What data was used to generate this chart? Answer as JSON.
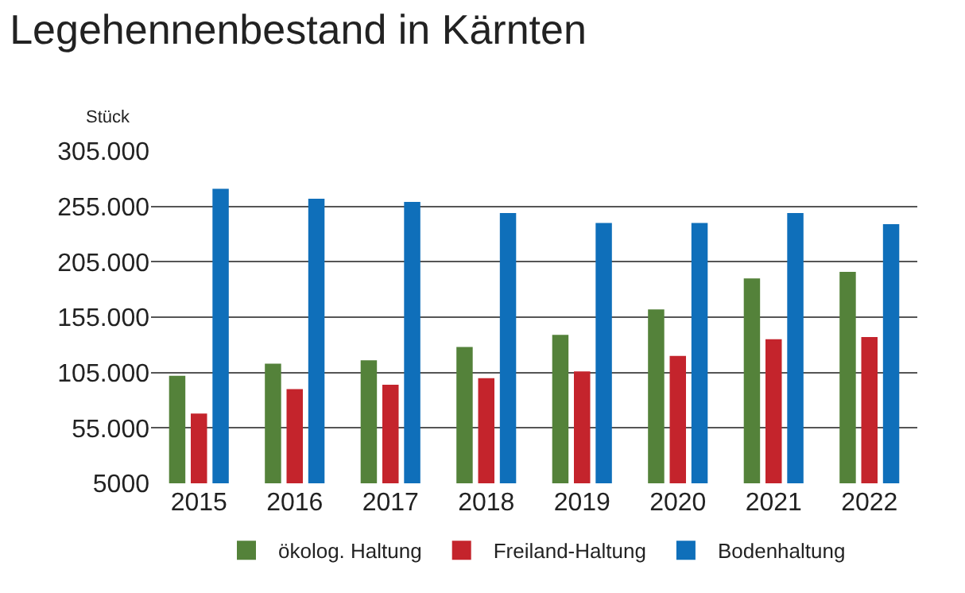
{
  "chart_data": {
    "type": "bar",
    "title": "Legehennenbestand in Kärnten",
    "annotations": [
      "Stück"
    ],
    "categories": [
      "2015",
      "2016",
      "2017",
      "2018",
      "2019",
      "2020",
      "2021",
      "2022"
    ],
    "series": [
      {
        "name": "ökolog. Haltung",
        "color": "#54823a",
        "values": [
          102000,
          113000,
          116000,
          128000,
          139000,
          162000,
          190000,
          196000
        ]
      },
      {
        "name": "Freiland-Haltung",
        "color": "#c4242c",
        "values": [
          68000,
          90000,
          94000,
          100000,
          106000,
          120000,
          135000,
          137000
        ]
      },
      {
        "name": "Bodenhaltung",
        "color": "#0f6fba",
        "values": [
          271000,
          262000,
          259000,
          249000,
          240000,
          240000,
          249000,
          239000
        ]
      }
    ],
    "ylim": [
      5000,
      305000
    ],
    "yticks": [
      {
        "value": 5000,
        "label": "5000"
      },
      {
        "value": 55000,
        "label": "55.000"
      },
      {
        "value": 105000,
        "label": "105.000"
      },
      {
        "value": 155000,
        "label": "155.000"
      },
      {
        "value": 205000,
        "label": "205.000"
      },
      {
        "value": 255000,
        "label": "255.000"
      },
      {
        "value": 305000,
        "label": "305.000"
      }
    ],
    "grid": "y",
    "legend": "bottom"
  }
}
